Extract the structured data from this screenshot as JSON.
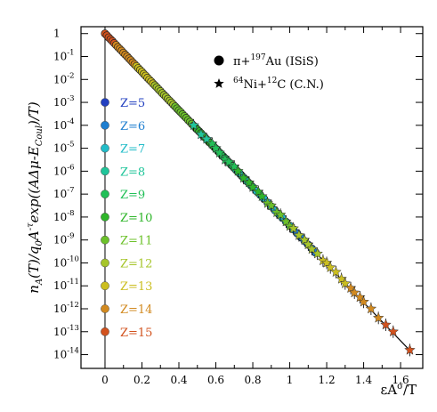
{
  "chart_data": {
    "type": "scatter",
    "title": "",
    "xlabel": "εA^σ/T",
    "ylabel": "n_A(T)/q_0A^-τ exp((AΔμ-E_Coul)/T)",
    "xlim": [
      -0.13,
      1.72
    ],
    "ylim": [
      -14.6,
      0.3
    ],
    "y_scale": "log",
    "grid": false,
    "x_ticks": [
      "0",
      "0.2",
      "0.4",
      "0.6",
      "0.8",
      "1",
      "1.2",
      "1.4",
      "1.6"
    ],
    "x_tick_values": [
      0,
      0.2,
      0.4,
      0.6,
      0.8,
      1.0,
      1.2,
      1.4,
      1.6
    ],
    "y_ticks": [
      {
        "base": "1",
        "exp": "",
        "value": 0
      },
      {
        "base": "10",
        "exp": "-1",
        "value": -1
      },
      {
        "base": "10",
        "exp": "-2",
        "value": -2
      },
      {
        "base": "10",
        "exp": "-3",
        "value": -3
      },
      {
        "base": "10",
        "exp": "-4",
        "value": -4
      },
      {
        "base": "10",
        "exp": "-5",
        "value": -5
      },
      {
        "base": "10",
        "exp": "-6",
        "value": -6
      },
      {
        "base": "10",
        "exp": "-7",
        "value": -7
      },
      {
        "base": "10",
        "exp": "-8",
        "value": -8
      },
      {
        "base": "10",
        "exp": "-9",
        "value": -9
      },
      {
        "base": "10",
        "exp": "-10",
        "value": -10
      },
      {
        "base": "10",
        "exp": "-11",
        "value": -11
      },
      {
        "base": "10",
        "exp": "-12",
        "value": -12
      },
      {
        "base": "10",
        "exp": "-13",
        "value": -13
      },
      {
        "base": "10",
        "exp": "-14",
        "value": -14
      }
    ],
    "legend": {
      "placement": "top-right",
      "entries": [
        {
          "marker": "circle",
          "text": "π+",
          "sup": "197",
          "rest": "Au (ISiS)"
        },
        {
          "marker": "star",
          "pre_sup": "64",
          "text": "Ni+",
          "sup": "12",
          "rest": "C (C.N.)"
        }
      ]
    },
    "z_legend": [
      {
        "label": "Z=5",
        "color": "#2340c0"
      },
      {
        "label": "Z=6",
        "color": "#1f7fd0"
      },
      {
        "label": "Z=7",
        "color": "#22bcc8"
      },
      {
        "label": "Z=8",
        "color": "#20c59a"
      },
      {
        "label": "Z=9",
        "color": "#22c058"
      },
      {
        "label": "Z=10",
        "color": "#2fb52a"
      },
      {
        "label": "Z=11",
        "color": "#6cc12a"
      },
      {
        "label": "Z=12",
        "color": "#a6c52a"
      },
      {
        "label": "Z=13",
        "color": "#cbbe20"
      },
      {
        "label": "Z=14",
        "color": "#d28a20"
      },
      {
        "label": "Z=15",
        "color": "#d2521e"
      }
    ],
    "fit_line": {
      "x": [
        0,
        1.66
      ],
      "log10_y": [
        0,
        -13.9
      ]
    },
    "series": [
      {
        "name": "π+197Au (ISiS)",
        "marker": "circle",
        "x": [
          0.0,
          0.01,
          0.02,
          0.03,
          0.04,
          0.05,
          0.06,
          0.07,
          0.08,
          0.09,
          0.1,
          0.11,
          0.12,
          0.13,
          0.14,
          0.15,
          0.16,
          0.17,
          0.18,
          0.19,
          0.2,
          0.21,
          0.22,
          0.23,
          0.24,
          0.25,
          0.26,
          0.27,
          0.28,
          0.29,
          0.3,
          0.31,
          0.32,
          0.33,
          0.34,
          0.35,
          0.36,
          0.37,
          0.38,
          0.39,
          0.4,
          0.41,
          0.42,
          0.43,
          0.44,
          0.45,
          0.46,
          0.47,
          0.48,
          0.49,
          0.5,
          0.51,
          0.52,
          0.53,
          0.54,
          0.55,
          0.56,
          0.57,
          0.58,
          0.59,
          0.6,
          0.61,
          0.62,
          0.63,
          0.64,
          0.65,
          0.66,
          0.67,
          0.68,
          0.69,
          0.7,
          0.71,
          0.72,
          0.73,
          0.74,
          0.75,
          0.76,
          0.77,
          0.78,
          0.79,
          0.8,
          0.82,
          0.84,
          0.86,
          0.88,
          0.9,
          0.92,
          0.94,
          0.96,
          0.98,
          1.0,
          1.02,
          1.04,
          1.06,
          1.08,
          1.1,
          1.12,
          1.14
        ],
        "log10_y": [
          0.0,
          -0.08,
          -0.17,
          -0.25,
          -0.33,
          -0.42,
          -0.5,
          -0.59,
          -0.67,
          -0.75,
          -0.84,
          -0.92,
          -1.0,
          -1.09,
          -1.17,
          -1.26,
          -1.34,
          -1.42,
          -1.51,
          -1.59,
          -1.67,
          -1.76,
          -1.84,
          -1.93,
          -2.01,
          -2.09,
          -2.18,
          -2.26,
          -2.34,
          -2.43,
          -2.51,
          -2.6,
          -2.68,
          -2.76,
          -2.85,
          -2.93,
          -3.01,
          -3.1,
          -3.18,
          -3.27,
          -3.35,
          -3.43,
          -3.52,
          -3.6,
          -3.68,
          -3.77,
          -3.85,
          -3.94,
          -4.02,
          -4.1,
          -4.19,
          -4.27,
          -4.35,
          -4.44,
          -4.52,
          -4.61,
          -4.69,
          -4.77,
          -4.86,
          -4.94,
          -5.02,
          -5.11,
          -5.19,
          -5.28,
          -5.36,
          -5.44,
          -5.53,
          -5.61,
          -5.69,
          -5.78,
          -5.86,
          -5.95,
          -6.03,
          -6.11,
          -6.2,
          -6.28,
          -6.36,
          -6.45,
          -6.53,
          -6.62,
          -6.7,
          -6.87,
          -7.03,
          -7.2,
          -7.37,
          -7.54,
          -7.71,
          -7.87,
          -8.04,
          -8.21,
          -8.38,
          -8.54,
          -8.71,
          -8.88,
          -9.05,
          -9.21,
          -9.38,
          -9.55
        ]
      },
      {
        "name": "64Ni+12C (C.N.)",
        "marker": "star",
        "x": [
          0.48,
          0.52,
          0.55,
          0.58,
          0.6,
          0.62,
          0.65,
          0.67,
          0.7,
          0.72,
          0.75,
          0.78,
          0.8,
          0.83,
          0.85,
          0.88,
          0.9,
          0.93,
          0.95,
          0.98,
          1.0,
          1.02,
          1.05,
          1.08,
          1.1,
          1.12,
          1.15,
          1.18,
          1.2,
          1.22,
          1.25,
          1.28,
          1.3,
          1.33,
          1.35,
          1.38,
          1.4,
          1.44,
          1.48,
          1.52,
          1.56,
          1.65
        ],
        "log10_y": [
          -4.0,
          -4.4,
          -4.6,
          -4.8,
          -5.0,
          -5.2,
          -5.5,
          -5.6,
          -5.8,
          -6.0,
          -6.3,
          -6.5,
          -6.7,
          -6.9,
          -7.1,
          -7.4,
          -7.5,
          -7.8,
          -7.9,
          -8.2,
          -8.4,
          -8.5,
          -8.8,
          -9.0,
          -9.2,
          -9.4,
          -9.6,
          -9.9,
          -10.0,
          -10.2,
          -10.4,
          -10.7,
          -10.9,
          -11.1,
          -11.3,
          -11.5,
          -11.7,
          -12.0,
          -12.4,
          -12.7,
          -13.0,
          -13.8
        ]
      }
    ]
  }
}
